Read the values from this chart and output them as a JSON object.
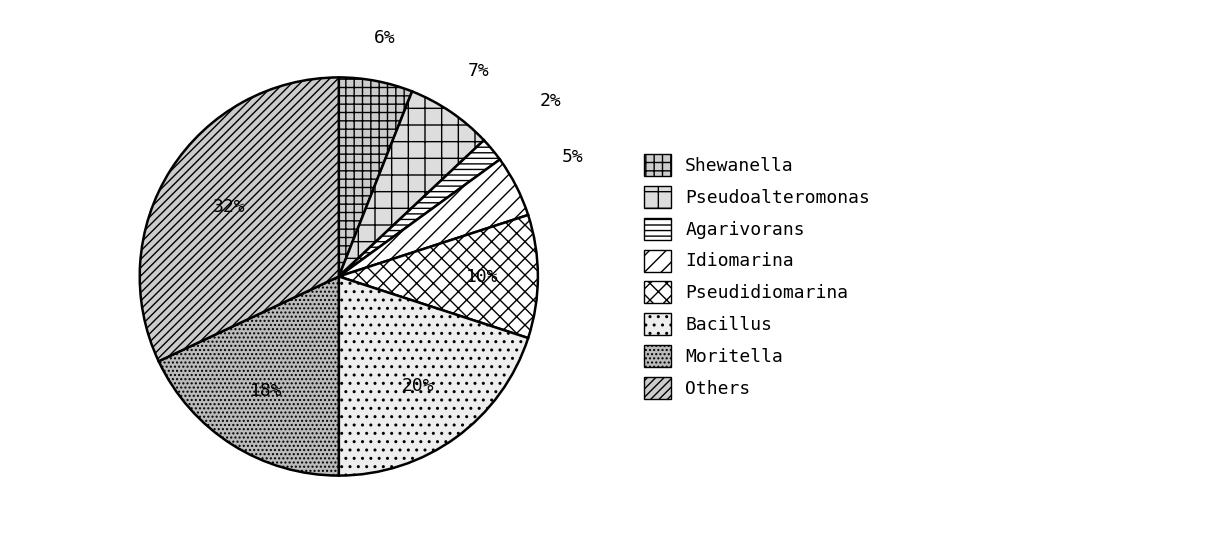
{
  "labels": [
    "Shewanella",
    "Pseudoalteromonas",
    "Agarivorans",
    "Idiomarina",
    "Pseudidiomarina",
    "Bacillus",
    "Moritella",
    "Others"
  ],
  "values": [
    6,
    7,
    2,
    5,
    10,
    20,
    18,
    32
  ],
  "pct_labels": [
    "6%",
    "7%",
    "2%",
    "5%",
    "10%",
    "20%",
    "18%",
    "32%"
  ],
  "hatch_list": [
    "++",
    "+",
    "---",
    "//",
    "xx",
    "..",
    "....",
    "////"
  ],
  "face_colors": [
    "#cccccc",
    "#dddddd",
    "#ffffff",
    "#ffffff",
    "#ffffff",
    "#eeeeee",
    "#bbbbbb",
    "#cccccc"
  ],
  "edge_color": "#000000",
  "text_color": "#000000",
  "background_color": "#ffffff",
  "font_family": "monospace",
  "pct_fontsize": 13,
  "legend_fontsize": 13,
  "startangle": 90,
  "pct_radius": [
    1.22,
    1.25,
    1.38,
    1.32,
    0.72,
    0.68,
    0.68,
    0.65
  ]
}
